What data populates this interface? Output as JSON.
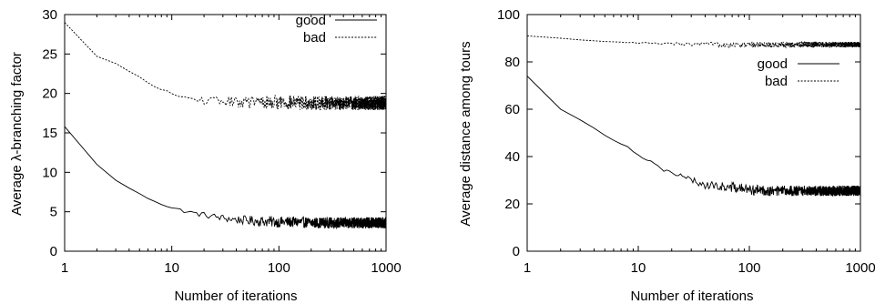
{
  "chart_data": [
    {
      "type": "line",
      "xlabel": "Number of iterations",
      "ylabel": "Average λ-branching factor",
      "xscale": "log",
      "xlim": [
        1,
        1000
      ],
      "ylim": [
        0,
        30
      ],
      "x_ticks": [
        1,
        10,
        100,
        1000
      ],
      "x_tick_labels": [
        "1",
        "10",
        "100",
        "1000"
      ],
      "y_ticks": [
        0,
        5,
        10,
        15,
        20,
        25,
        30
      ],
      "y_tick_labels": [
        "0",
        "5",
        "10",
        "15",
        "20",
        "25",
        "30"
      ],
      "grid": false,
      "legend_position": "top-right",
      "series": [
        {
          "name": "good",
          "style": "solid",
          "noise": 0.7,
          "x": [
            1,
            1.5,
            2,
            3,
            4,
            5,
            6,
            8,
            10,
            15,
            20,
            30,
            40,
            50,
            70,
            100,
            150,
            200,
            300,
            500,
            700,
            1000
          ],
          "y": [
            15.8,
            12.8,
            11,
            9,
            8,
            7.3,
            6.7,
            6,
            5.5,
            4.9,
            4.6,
            4.2,
            4,
            3.9,
            3.8,
            3.7,
            3.7,
            3.6,
            3.6,
            3.6,
            3.6,
            3.6
          ]
        },
        {
          "name": "bad",
          "style": "dashed",
          "noise": 0.9,
          "x": [
            1,
            1.5,
            2,
            3,
            4,
            5,
            6,
            7,
            8,
            10,
            12,
            15,
            20,
            30,
            40,
            50,
            70,
            100,
            150,
            200,
            300,
            500,
            700,
            1000
          ],
          "y": [
            29,
            26.8,
            24.7,
            23.8,
            22.8,
            22.1,
            21.4,
            20.8,
            20.4,
            20,
            19.6,
            19.3,
            19.1,
            19,
            18.9,
            18.9,
            18.9,
            18.9,
            18.8,
            18.8,
            18.8,
            18.8,
            18.8,
            18.8
          ]
        }
      ]
    },
    {
      "type": "line",
      "xlabel": "Number of iterations",
      "ylabel": "Average distance among tours",
      "xscale": "log",
      "xlim": [
        1,
        1000
      ],
      "ylim": [
        0,
        100
      ],
      "x_ticks": [
        1,
        10,
        100,
        1000
      ],
      "x_tick_labels": [
        "1",
        "10",
        "100",
        "1000"
      ],
      "y_ticks": [
        0,
        20,
        40,
        60,
        80,
        100
      ],
      "y_tick_labels": [
        "0",
        "20",
        "40",
        "60",
        "80",
        "100"
      ],
      "grid": false,
      "legend_position": "upper-right",
      "series": [
        {
          "name": "good",
          "style": "solid",
          "noise": 2.2,
          "x": [
            1,
            1.5,
            2,
            3,
            4,
            5,
            6,
            8,
            10,
            15,
            20,
            30,
            40,
            50,
            70,
            100,
            150,
            200,
            300,
            500,
            700,
            1000
          ],
          "y": [
            74,
            65,
            60,
            55.5,
            52,
            49,
            47,
            44,
            41,
            36,
            33,
            30,
            28,
            27.5,
            27,
            26,
            25.5,
            25.5,
            25.5,
            25.5,
            25.5,
            25.5
          ]
        },
        {
          "name": "bad",
          "style": "dashed",
          "noise": 1.2,
          "x": [
            1,
            2,
            3,
            5,
            10,
            20,
            50,
            100,
            200,
            500,
            1000
          ],
          "y": [
            91,
            90,
            89.3,
            88.6,
            88,
            87.6,
            87.3,
            87.3,
            87.3,
            87.3,
            87.3
          ]
        }
      ]
    }
  ]
}
